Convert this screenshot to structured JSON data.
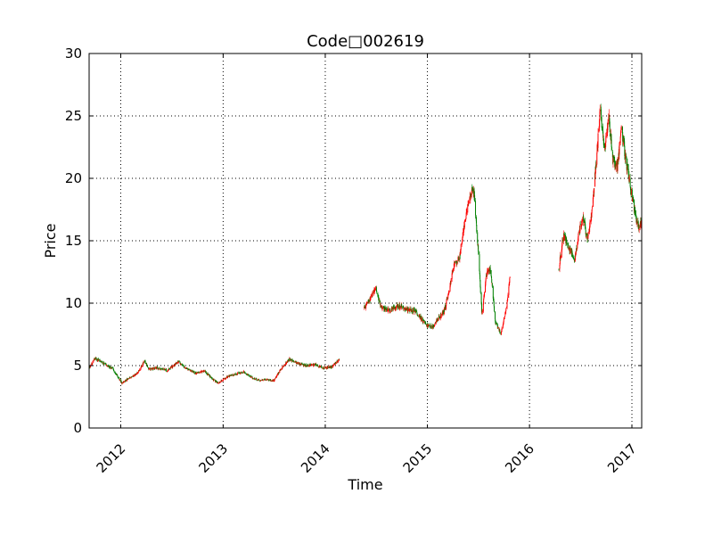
{
  "chart_data": {
    "type": "candlestick",
    "title": "Code□002619",
    "xlabel": "Time",
    "ylabel": "Price",
    "ylim": [
      0,
      30
    ],
    "xlim": [
      "2011-09-10",
      "2017-02-05"
    ],
    "yticks": [
      0,
      5,
      10,
      15,
      20,
      25,
      30
    ],
    "xticks": [
      {
        "date": "2012-01-01",
        "label": "2012"
      },
      {
        "date": "2013-01-01",
        "label": "2013"
      },
      {
        "date": "2014-01-01",
        "label": "2014"
      },
      {
        "date": "2015-01-01",
        "label": "2015"
      },
      {
        "date": "2016-01-01",
        "label": "2016"
      },
      {
        "date": "2017-01-01",
        "label": "2017"
      }
    ],
    "x_tick_rotation_deg": 45,
    "grid": true,
    "colors": {
      "up": "#ff0000",
      "down": "#008000",
      "grid": "#000000",
      "axis": "#000000"
    },
    "series": [
      {
        "segments": [
          {
            "points": [
              [
                "2011-09-10",
                4.8
              ],
              [
                "2011-10-01",
                5.6
              ],
              [
                "2011-11-01",
                5.2
              ],
              [
                "2011-12-05",
                4.7
              ],
              [
                "2012-01-05",
                3.6
              ],
              [
                "2012-02-01",
                4.0
              ],
              [
                "2012-03-01",
                4.4
              ],
              [
                "2012-03-25",
                5.4
              ],
              [
                "2012-04-10",
                4.7
              ],
              [
                "2012-05-10",
                4.8
              ],
              [
                "2012-06-15",
                4.6
              ],
              [
                "2012-07-25",
                5.3
              ],
              [
                "2012-08-25",
                4.7
              ],
              [
                "2012-09-25",
                4.4
              ],
              [
                "2012-10-25",
                4.6
              ],
              [
                "2012-11-25",
                3.9
              ],
              [
                "2012-12-15",
                3.6
              ],
              [
                "2013-01-15",
                4.1
              ],
              [
                "2013-02-15",
                4.3
              ],
              [
                "2013-03-15",
                4.5
              ],
              [
                "2013-04-15",
                4.0
              ],
              [
                "2013-05-15",
                3.8
              ],
              [
                "2013-06-01",
                3.9
              ],
              [
                "2013-07-01",
                3.8
              ],
              [
                "2013-08-01",
                4.9
              ],
              [
                "2013-08-25",
                5.5
              ],
              [
                "2013-09-25",
                5.2
              ],
              [
                "2013-10-25",
                5.0
              ],
              [
                "2013-11-25",
                5.1
              ],
              [
                "2013-12-25",
                4.8
              ],
              [
                "2014-01-25",
                4.9
              ],
              [
                "2014-02-20",
                5.5
              ]
            ]
          },
          {
            "points": [
              [
                "2014-05-20",
                9.6
              ],
              [
                "2014-06-10",
                10.3
              ],
              [
                "2014-07-01",
                11.2
              ],
              [
                "2014-07-20",
                9.6
              ],
              [
                "2014-08-20",
                9.4
              ],
              [
                "2014-09-20",
                9.8
              ],
              [
                "2014-10-20",
                9.5
              ],
              [
                "2014-11-20",
                9.4
              ],
              [
                "2014-12-10",
                8.7
              ],
              [
                "2015-01-01",
                8.2
              ],
              [
                "2015-01-20",
                8.1
              ],
              [
                "2015-02-10",
                8.8
              ],
              [
                "2015-03-01",
                9.3
              ],
              [
                "2015-03-20",
                11.0
              ],
              [
                "2015-04-05",
                13.0
              ],
              [
                "2015-04-25",
                13.6
              ],
              [
                "2015-05-15",
                16.5
              ],
              [
                "2015-06-01",
                18.5
              ],
              [
                "2015-06-15",
                19.3
              ],
              [
                "2015-07-01",
                14.5
              ],
              [
                "2015-07-15",
                9.0
              ],
              [
                "2015-08-01",
                12.5
              ],
              [
                "2015-08-15",
                12.8
              ],
              [
                "2015-09-01",
                8.5
              ],
              [
                "2015-09-20",
                7.5
              ],
              [
                "2015-10-10",
                9.5
              ],
              [
                "2015-10-25",
                12.5
              ]
            ]
          },
          {
            "points": [
              [
                "2016-04-15",
                12.8
              ],
              [
                "2016-05-01",
                15.5
              ],
              [
                "2016-05-20",
                14.5
              ],
              [
                "2016-06-10",
                13.5
              ],
              [
                "2016-06-25",
                15.5
              ],
              [
                "2016-07-10",
                17.0
              ],
              [
                "2016-07-25",
                15.0
              ],
              [
                "2016-08-10",
                17.0
              ],
              [
                "2016-08-25",
                21.0
              ],
              [
                "2016-09-10",
                25.5
              ],
              [
                "2016-09-25",
                22.0
              ],
              [
                "2016-10-10",
                25.0
              ],
              [
                "2016-10-25",
                21.5
              ],
              [
                "2016-11-10",
                21.0
              ],
              [
                "2016-11-25",
                24.0
              ],
              [
                "2016-12-10",
                21.5
              ],
              [
                "2016-12-25",
                19.5
              ],
              [
                "2017-01-10",
                17.5
              ],
              [
                "2017-01-25",
                16.0
              ],
              [
                "2017-02-05",
                16.5
              ]
            ]
          }
        ]
      }
    ]
  }
}
